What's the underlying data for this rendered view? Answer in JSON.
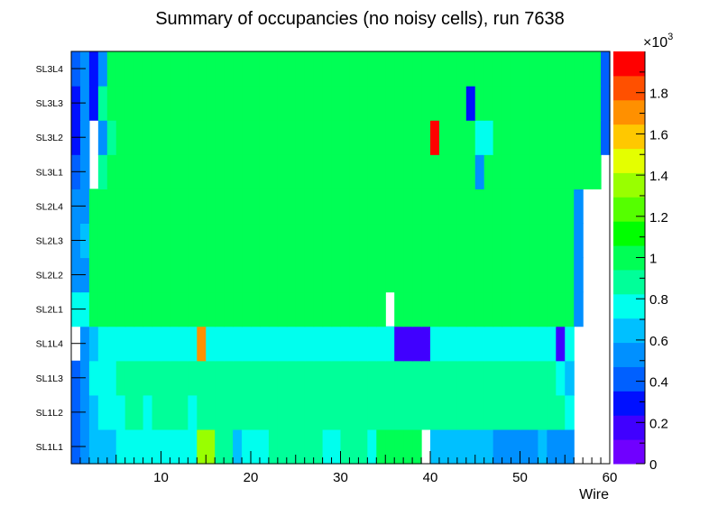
{
  "chart_data": {
    "type": "heatmap",
    "title": "Summary of occupancies (no noisy cells), run 7638",
    "xlabel": "Wire",
    "ylabel": "",
    "xlim": [
      0,
      60
    ],
    "x_ticks": [
      "10",
      "20",
      "30",
      "40",
      "50",
      "60"
    ],
    "y_categories": [
      "SL1L1",
      "SL1L2",
      "SL1L3",
      "SL1L4",
      "SL2L1",
      "SL2L2",
      "SL2L3",
      "SL2L4",
      "SL3L1",
      "SL3L2",
      "SL3L3",
      "SL3L4"
    ],
    "zlim": [
      0,
      2000
    ],
    "z_exponent_label": "×10",
    "z_exponent_power": "3",
    "z_tick_labels": [
      "0",
      "0.2",
      "0.4",
      "0.6",
      "0.8",
      "1",
      "1.2",
      "1.4",
      "1.6",
      "1.8"
    ],
    "palette": [
      "#7000ff",
      "#4000ff",
      "#0010ff",
      "#0060ff",
      "#0090ff",
      "#00c0ff",
      "#00ffee",
      "#00ff99",
      "#00ff55",
      "#00ff00",
      "#55ff00",
      "#99ff00",
      "#e4ff00",
      "#ffc800",
      "#ff9000",
      "#ff5000",
      "#ff0000"
    ],
    "rows": [
      {
        "label": "SL1L1",
        "values": [
          420,
          540,
          640,
          640,
          690,
          740,
          740,
          740,
          740,
          740,
          740,
          740,
          740,
          740,
          1380,
          1380,
          860,
          860,
          680,
          740,
          790,
          790,
          860,
          860,
          860,
          860,
          860,
          860,
          790,
          790,
          860,
          860,
          860,
          790,
          1000,
          1000,
          1000,
          1000,
          1000,
          null,
          690,
          690,
          690,
          690,
          690,
          690,
          640,
          580,
          580,
          580,
          580,
          580,
          640,
          580,
          580,
          580,
          null,
          null,
          null,
          null
        ]
      },
      {
        "label": "SL1L2",
        "values": [
          420,
          540,
          680,
          740,
          740,
          790,
          860,
          860,
          790,
          860,
          860,
          860,
          860,
          790,
          860,
          860,
          860,
          860,
          860,
          860,
          860,
          860,
          860,
          860,
          860,
          860,
          860,
          860,
          860,
          860,
          860,
          860,
          860,
          860,
          860,
          860,
          860,
          860,
          860,
          860,
          860,
          860,
          860,
          860,
          860,
          860,
          860,
          860,
          860,
          860,
          860,
          860,
          860,
          860,
          860,
          740,
          null,
          null,
          null,
          null
        ]
      },
      {
        "label": "SL1L3",
        "values": [
          420,
          540,
          740,
          740,
          790,
          860,
          860,
          860,
          860,
          860,
          860,
          860,
          860,
          860,
          860,
          860,
          860,
          860,
          860,
          860,
          860,
          860,
          860,
          860,
          860,
          860,
          860,
          860,
          860,
          860,
          860,
          860,
          860,
          860,
          860,
          860,
          860,
          860,
          860,
          860,
          860,
          860,
          860,
          860,
          860,
          860,
          860,
          860,
          860,
          860,
          860,
          860,
          860,
          860,
          740,
          690,
          null,
          null,
          null,
          null
        ]
      },
      {
        "label": "SL1L4",
        "values": [
          null,
          580,
          690,
          740,
          790,
          790,
          790,
          790,
          790,
          790,
          790,
          790,
          790,
          790,
          1650,
          790,
          790,
          790,
          790,
          790,
          790,
          790,
          790,
          790,
          790,
          790,
          790,
          790,
          790,
          790,
          790,
          790,
          790,
          790,
          790,
          790,
          140,
          140,
          140,
          140,
          790,
          790,
          790,
          790,
          790,
          740,
          740,
          740,
          740,
          740,
          740,
          740,
          740,
          740,
          140,
          740,
          null,
          null,
          null,
          null
        ]
      },
      {
        "label": "SL2L1",
        "values": [
          740,
          740,
          1000,
          1000,
          1000,
          1000,
          1000,
          1000,
          1000,
          1000,
          1000,
          1000,
          1000,
          1000,
          1000,
          1000,
          1000,
          1000,
          1000,
          1000,
          1000,
          1000,
          1000,
          1000,
          1000,
          1000,
          1000,
          1000,
          1000,
          1000,
          1000,
          1000,
          1000,
          1000,
          1000,
          null,
          1000,
          1000,
          1000,
          1000,
          1000,
          1000,
          1000,
          1000,
          1000,
          1000,
          1000,
          1000,
          1000,
          1000,
          1000,
          1000,
          1000,
          1000,
          1000,
          1000,
          520,
          null,
          null,
          null
        ]
      },
      {
        "label": "SL2L2",
        "values": [
          480,
          580,
          1000,
          1000,
          1000,
          1000,
          1000,
          1000,
          1000,
          1000,
          1000,
          1000,
          1000,
          1000,
          1000,
          1000,
          1000,
          1000,
          1000,
          1000,
          1000,
          1000,
          1000,
          1000,
          1000,
          1000,
          1000,
          1000,
          1000,
          1000,
          1000,
          1000,
          1000,
          1000,
          1000,
          1000,
          1000,
          1000,
          1000,
          1000,
          1000,
          1000,
          1000,
          1000,
          1000,
          1000,
          1000,
          1000,
          1000,
          1000,
          1000,
          1000,
          1000,
          1000,
          1000,
          1000,
          520,
          null,
          null,
          null
        ]
      },
      {
        "label": "SL2L3",
        "values": [
          480,
          640,
          1000,
          1000,
          1000,
          1000,
          1000,
          1000,
          1000,
          1000,
          1000,
          1000,
          1000,
          1000,
          1000,
          1000,
          1000,
          1000,
          1000,
          1000,
          1000,
          1000,
          1000,
          1000,
          1000,
          1000,
          1000,
          1000,
          1000,
          1000,
          1000,
          1000,
          1000,
          1000,
          1000,
          1000,
          1000,
          1000,
          1000,
          1000,
          1000,
          1000,
          1000,
          1000,
          1000,
          1000,
          1000,
          1000,
          1000,
          1000,
          1000,
          1000,
          1000,
          1000,
          1000,
          1000,
          520,
          null,
          null,
          null
        ]
      },
      {
        "label": "SL2L4",
        "values": [
          580,
          580,
          1000,
          1000,
          1000,
          1000,
          1000,
          1000,
          1000,
          1000,
          1000,
          1000,
          1000,
          1000,
          1000,
          1000,
          1000,
          1000,
          1000,
          1000,
          1000,
          1000,
          1000,
          1000,
          1000,
          1000,
          1000,
          1000,
          1000,
          1000,
          1000,
          1000,
          1000,
          1000,
          1000,
          1000,
          1000,
          1000,
          1000,
          1000,
          1000,
          1000,
          1000,
          1000,
          1000,
          1000,
          1000,
          1000,
          1000,
          1000,
          1000,
          1000,
          1000,
          1000,
          1000,
          1000,
          520,
          null,
          null,
          null
        ]
      },
      {
        "label": "SL3L1",
        "values": [
          440,
          580,
          null,
          860,
          1000,
          1000,
          1000,
          1000,
          1000,
          1000,
          1000,
          1000,
          1000,
          1000,
          1000,
          1000,
          1000,
          1000,
          1000,
          1000,
          1000,
          1000,
          1000,
          1000,
          1000,
          1000,
          1000,
          1000,
          1000,
          1000,
          1000,
          1000,
          1000,
          1000,
          1000,
          1000,
          1000,
          1000,
          1000,
          1000,
          1000,
          1000,
          1000,
          1000,
          1000,
          580,
          1000,
          1000,
          1000,
          1000,
          1000,
          1000,
          1000,
          1000,
          1000,
          1000,
          1000,
          1000,
          1000,
          null
        ]
      },
      {
        "label": "SL3L2",
        "values": [
          330,
          580,
          null,
          580,
          860,
          1000,
          1000,
          1000,
          1000,
          1000,
          1000,
          1000,
          1000,
          1000,
          1000,
          1000,
          1000,
          1000,
          1000,
          1000,
          1000,
          1000,
          1000,
          1000,
          1000,
          1000,
          1000,
          1000,
          1000,
          1000,
          1000,
          1000,
          1000,
          1000,
          1000,
          1000,
          1000,
          1000,
          1000,
          1000,
          2000,
          1000,
          1000,
          1000,
          1000,
          790,
          790,
          1000,
          1000,
          1000,
          1000,
          1000,
          1000,
          1000,
          1000,
          1000,
          1000,
          1000,
          1000,
          440
        ]
      },
      {
        "label": "SL3L3",
        "values": [
          330,
          520,
          330,
          860,
          1000,
          1000,
          1000,
          1000,
          1000,
          1000,
          1000,
          1000,
          1000,
          1000,
          1000,
          1000,
          1000,
          1000,
          1000,
          1000,
          1000,
          1000,
          1000,
          1000,
          1000,
          1000,
          1000,
          1000,
          1000,
          1000,
          1000,
          1000,
          1000,
          1000,
          1000,
          1000,
          1000,
          1000,
          1000,
          1000,
          1000,
          1000,
          1000,
          1000,
          330,
          1000,
          1000,
          1000,
          1000,
          1000,
          1000,
          1000,
          1000,
          1000,
          1000,
          1000,
          1000,
          1000,
          1000,
          440
        ]
      },
      {
        "label": "SL3L4",
        "values": [
          440,
          580,
          330,
          480,
          1000,
          1000,
          1000,
          1000,
          1000,
          1000,
          1000,
          1000,
          1000,
          1000,
          1000,
          1000,
          1000,
          1000,
          1000,
          1000,
          1000,
          1000,
          1000,
          1000,
          1000,
          1000,
          1000,
          1000,
          1000,
          1000,
          1000,
          1000,
          1000,
          1000,
          1000,
          1000,
          1000,
          1000,
          1000,
          1000,
          1000,
          1000,
          1000,
          1000,
          1000,
          1000,
          1000,
          1000,
          1000,
          1000,
          1000,
          1000,
          1000,
          1000,
          1000,
          1000,
          1000,
          1000,
          1000,
          440
        ]
      }
    ]
  }
}
